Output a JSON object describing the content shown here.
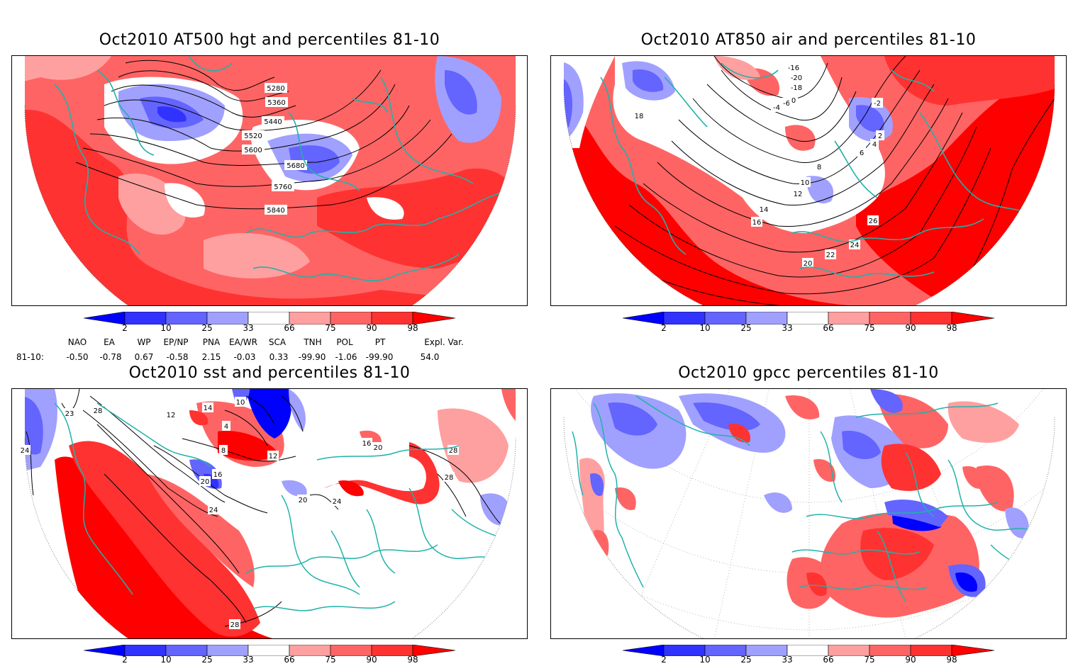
{
  "panels": {
    "hgt500": {
      "title": "Oct2010 AT500 hgt and percentiles 81-10",
      "contour_labels": [
        "5280",
        "5360",
        "5440",
        "5520",
        "5600",
        "5680",
        "5760",
        "5840"
      ]
    },
    "air850": {
      "title": "Oct2010 AT850 air and percentiles 81-10",
      "contour_labels": [
        "-16",
        "-20",
        "-18",
        "-4",
        "-6",
        "0",
        "-2",
        "2",
        "4",
        "6",
        "8",
        "10",
        "12",
        "14",
        "16",
        "18",
        "20",
        "22",
        "24",
        "26"
      ]
    },
    "sst": {
      "title": "Oct2010 sst and percentiles 81-10",
      "contour_labels": [
        "24",
        "23",
        "28",
        "12",
        "14",
        "10",
        "4",
        "8",
        "12",
        "16",
        "20",
        "24",
        "20",
        "24",
        "16",
        "20",
        "28",
        "28",
        "28"
      ]
    },
    "gpcc": {
      "title": "Oct2010 gpcc percentiles 81-10"
    }
  },
  "colorbar": {
    "labels": [
      "2",
      "10",
      "25",
      "33",
      "66",
      "75",
      "90",
      "98"
    ],
    "colors": {
      "below2": "#0000ff",
      "b2_10": "#3232ff",
      "b10_25": "#6464ff",
      "b25_33": "#a0a0ff",
      "neutral": "#ffffff",
      "b66_75": "#ffa0a0",
      "b75_90": "#ff6464",
      "b90_98": "#ff3232",
      "above98": "#ff0000"
    }
  },
  "indices": {
    "headers": [
      "NAO",
      "EA",
      "WP",
      "EP/NP",
      "PNA",
      "EA/WR",
      "SCA",
      "TNH",
      "POL",
      "PT",
      "Expl. Var."
    ],
    "row_label": "81-10:",
    "values": [
      "-0.50",
      "-0.78",
      "0.67",
      "-0.58",
      "2.15",
      "-0.03",
      "0.33",
      "-99.90",
      "-1.06",
      "-99.90",
      "54.0"
    ]
  },
  "colors": {
    "coast": "#20b2aa",
    "contour": "#000000"
  }
}
